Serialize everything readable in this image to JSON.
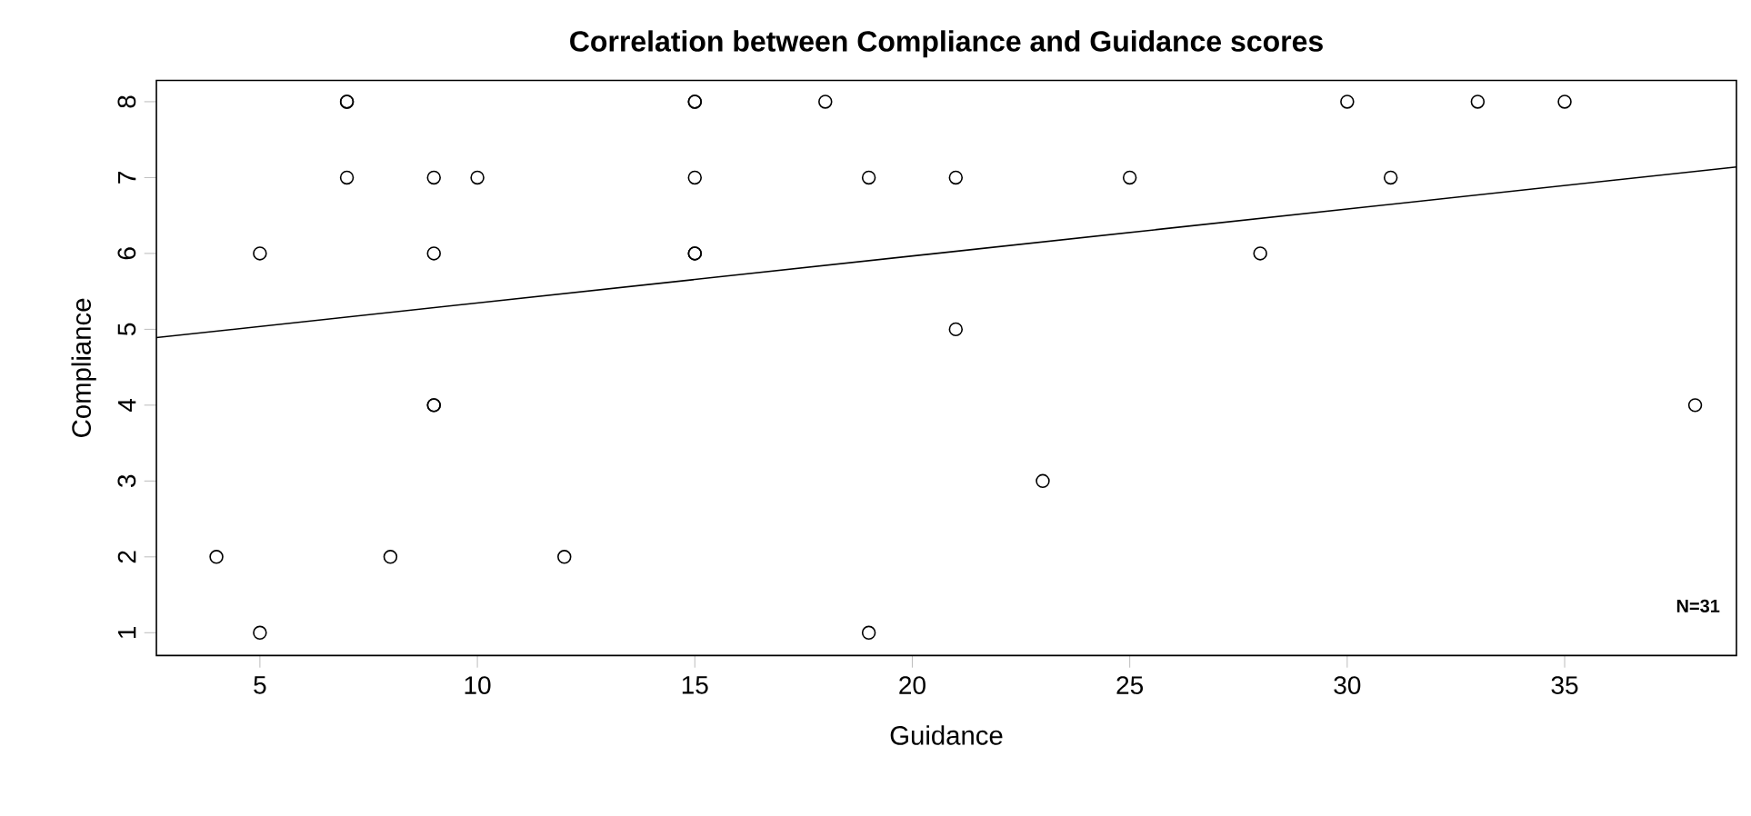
{
  "chart_data": {
    "type": "scatter",
    "title": "Correlation between Compliance and Guidance scores",
    "xlabel": "Guidance",
    "ylabel": "Compliance",
    "xlim": [
      2.62,
      38.95
    ],
    "ylim": [
      0.7,
      8.28
    ],
    "xticks": [
      5,
      10,
      15,
      20,
      25,
      30,
      35
    ],
    "yticks": [
      1,
      2,
      3,
      4,
      5,
      6,
      7,
      8
    ],
    "grid": false,
    "series": [
      {
        "marker": "circle",
        "color": "#000000",
        "x": [
          4,
          5,
          5,
          7,
          7,
          7,
          8,
          9,
          9,
          9,
          9,
          10,
          12,
          15,
          15,
          15,
          15,
          15,
          18,
          19,
          19,
          21,
          21,
          23,
          25,
          28,
          30,
          31,
          33,
          35,
          38
        ],
        "values": [
          2,
          6,
          1,
          8,
          8,
          7,
          2,
          7,
          6,
          4,
          4,
          7,
          2,
          8,
          8,
          7,
          6,
          6,
          8,
          7,
          1,
          7,
          5,
          3,
          7,
          6,
          8,
          7,
          8,
          8,
          4
        ]
      },
      {
        "type": "line",
        "color": "#000000",
        "line_style": "solid",
        "x": [
          2.62,
          38.95
        ],
        "values": [
          4.89,
          7.14
        ]
      }
    ],
    "annotations": [
      "N=31"
    ]
  }
}
